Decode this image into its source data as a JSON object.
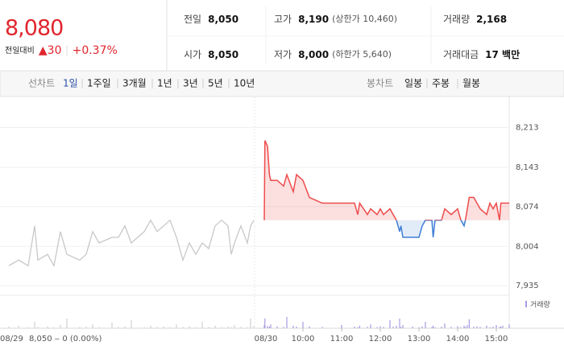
{
  "quote": {
    "price": "8,080",
    "change_label": "전일대비",
    "change": "▲30",
    "change_pct": "+0.37%",
    "stats": [
      {
        "label": "전일",
        "value": "8,050"
      },
      {
        "label": "고가",
        "value": "8,190",
        "note": "(상한가 10,460)"
      },
      {
        "label": "거래량",
        "value": "2,168"
      },
      {
        "label": "시가",
        "value": "8,050"
      },
      {
        "label": "저가",
        "value": "8,000",
        "note": "(하한가 5,640)"
      },
      {
        "label": "거래대금",
        "value": "17 백만"
      }
    ]
  },
  "tabs": {
    "line_label": "선차트",
    "line": [
      "1일",
      "1주일",
      "3개월",
      "1년",
      "3년",
      "5년",
      "10년"
    ],
    "candle_label": "봉차트",
    "candle": [
      "일봉",
      "주봉",
      "월봉"
    ]
  },
  "chart_data": {
    "type": "line",
    "ylim": [
      7921,
      8256
    ],
    "yticks": [
      {
        "value": 8213,
        "label": "8,213"
      },
      {
        "value": 8143,
        "label": "8,143"
      },
      {
        "value": 8074,
        "label": "8,074"
      },
      {
        "value": 8004,
        "label": "8,004"
      },
      {
        "value": 7935,
        "label": "7,935"
      }
    ],
    "xticks": [
      "10:00",
      "11:00",
      "12:00",
      "13:00",
      "14:00",
      "15:00"
    ],
    "baseline": 8050,
    "prev_day_info": "8,050 ‒ 0 (0.00%)",
    "volume_label": "거래량",
    "volume_lim": [
      0,
      100
    ],
    "series": [
      {
        "date": "08/29",
        "color": "#c8c8c8",
        "volume_color": "#d0d0d0",
        "x": [
          "09:00",
          "09:15",
          "09:30",
          "09:40",
          "09:45",
          "10:00",
          "10:10",
          "10:20",
          "10:30",
          "10:50",
          "11:00",
          "11:10",
          "11:20",
          "11:40",
          "11:50",
          "12:00",
          "12:10",
          "12:30",
          "12:40",
          "12:50",
          "13:00",
          "13:10",
          "13:20",
          "13:30",
          "13:40",
          "13:50",
          "14:00",
          "14:10",
          "14:20",
          "14:30",
          "14:40",
          "14:45",
          "14:50",
          "15:00",
          "15:10",
          "15:15",
          "15:20"
        ],
        "values": [
          7970,
          7980,
          7970,
          8040,
          7980,
          7990,
          7970,
          8030,
          7990,
          7980,
          7990,
          8030,
          8010,
          8020,
          8020,
          8040,
          8010,
          8030,
          8050,
          8030,
          8040,
          8050,
          8020,
          7980,
          8010,
          7990,
          8010,
          8000,
          8040,
          8050,
          8040,
          7990,
          8010,
          8040,
          8010,
          8040,
          8050
        ],
        "volume": [
          5,
          8,
          3,
          20,
          4,
          6,
          3,
          10,
          30,
          4,
          5,
          12,
          3,
          18,
          4,
          6,
          25,
          3,
          8,
          4,
          5,
          3,
          12,
          4,
          6,
          3,
          20,
          4,
          8,
          3,
          5,
          3,
          10,
          4,
          3,
          30,
          6
        ]
      },
      {
        "date": "08/30",
        "color": "#ee4b4b",
        "color_below": "#3f7fd6",
        "volume_color": "#a99be0",
        "x": [
          "09:00",
          "09:01",
          "09:05",
          "09:08",
          "09:10",
          "09:20",
          "09:30",
          "09:35",
          "09:45",
          "09:50",
          "10:00",
          "10:10",
          "10:30",
          "11:00",
          "11:20",
          "11:25",
          "11:28",
          "11:40",
          "11:45",
          "11:55",
          "12:00",
          "12:05",
          "12:15",
          "12:20",
          "12:25",
          "12:30",
          "12:32",
          "12:35",
          "12:50",
          "13:00",
          "13:05",
          "13:10",
          "13:20",
          "13:22",
          "13:25",
          "13:35",
          "13:40",
          "13:50",
          "14:00",
          "14:05",
          "14:10",
          "14:12",
          "14:15",
          "14:18",
          "14:25",
          "14:30",
          "14:35",
          "14:45",
          "14:50",
          "14:55",
          "15:00",
          "15:05",
          "15:07",
          "15:10",
          "15:20"
        ],
        "values": [
          8050,
          8190,
          8180,
          8130,
          8120,
          8120,
          8110,
          8130,
          8100,
          8130,
          8120,
          8090,
          8080,
          8080,
          8080,
          8060,
          8080,
          8060,
          8070,
          8060,
          8070,
          8060,
          8070,
          8060,
          8050,
          8030,
          8040,
          8020,
          8020,
          8020,
          8040,
          8050,
          8050,
          8020,
          8050,
          8050,
          8070,
          8060,
          8070,
          8050,
          8040,
          8050,
          8070,
          8090,
          8090,
          8080,
          8070,
          8060,
          8080,
          8070,
          8080,
          8050,
          8080,
          8080,
          8080
        ],
        "volume": [
          10,
          30,
          8,
          5,
          12,
          6,
          4,
          35,
          8,
          5,
          20,
          6,
          4,
          10,
          5,
          3,
          8,
          4,
          12,
          3,
          6,
          4,
          25,
          5,
          8,
          30,
          4,
          10,
          5,
          3,
          6,
          20,
          4,
          8,
          3,
          5,
          15,
          4,
          6,
          3,
          8,
          4,
          10,
          28,
          5,
          6,
          4,
          8,
          3,
          5,
          10,
          4,
          6,
          8,
          12
        ]
      }
    ]
  }
}
